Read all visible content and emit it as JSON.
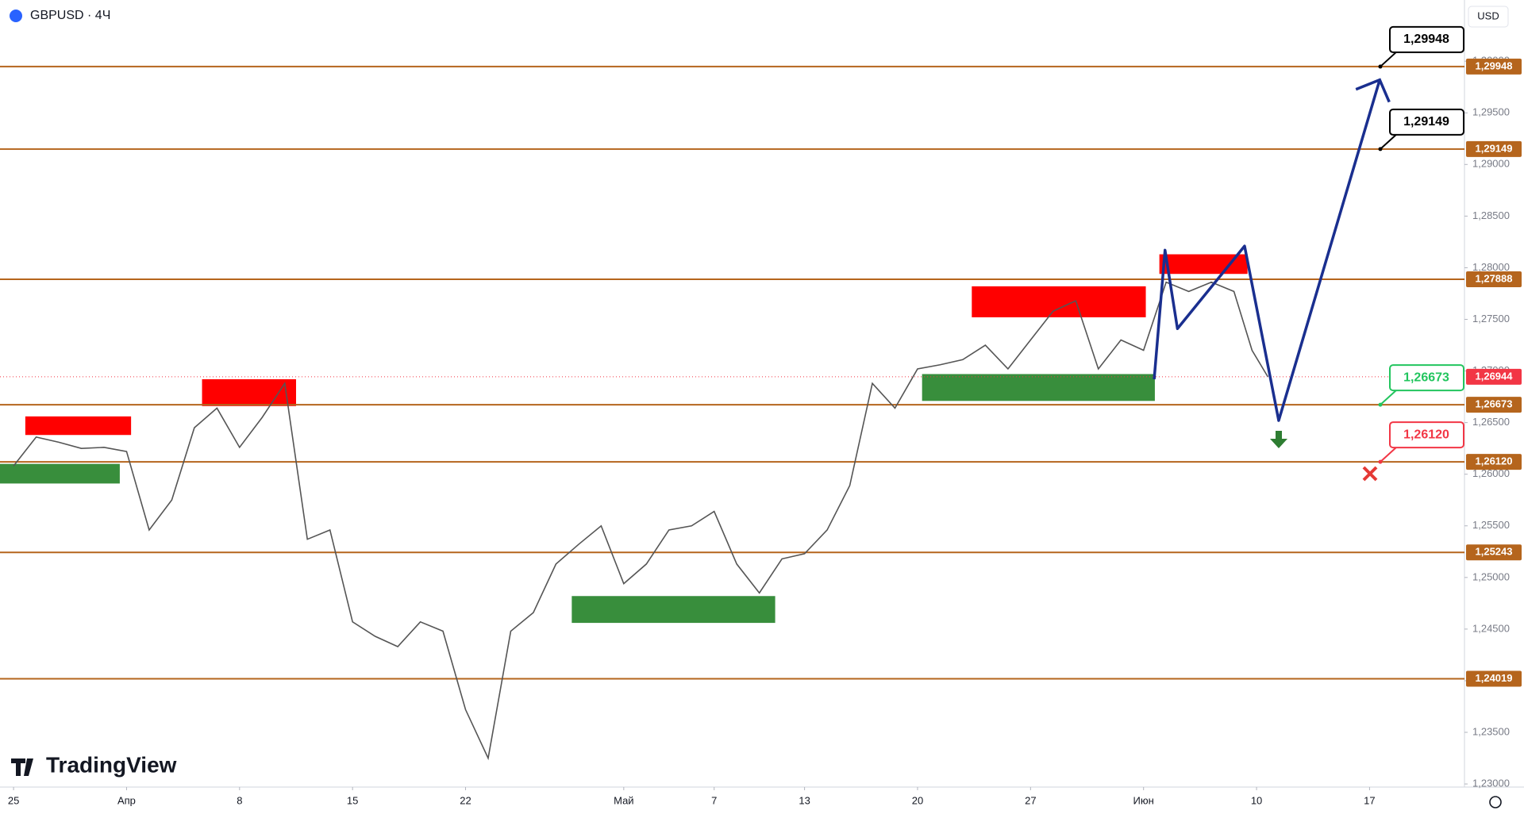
{
  "title": "GBPUSD · 4Ч",
  "currency": "USD",
  "brand": "TradingView",
  "chart_data": {
    "type": "line",
    "xlim": [
      -0.6,
      64.2
    ],
    "xticks": [
      {
        "value": 0,
        "label": "25"
      },
      {
        "value": 5,
        "label": "Апр"
      },
      {
        "value": 10,
        "label": "8"
      },
      {
        "value": 15,
        "label": "15"
      },
      {
        "value": 20,
        "label": "22"
      },
      {
        "value": 27,
        "label": "Май"
      },
      {
        "value": 31,
        "label": "7"
      },
      {
        "value": 35,
        "label": "13"
      },
      {
        "value": 40,
        "label": "20"
      },
      {
        "value": 45,
        "label": "27"
      },
      {
        "value": 50,
        "label": "Июн"
      },
      {
        "value": 55,
        "label": "10"
      },
      {
        "value": 60,
        "label": "17"
      }
    ],
    "ylim": [
      1.2297,
      1.30593
    ],
    "yticks": [
      {
        "value": 1.23,
        "label": "1,23000"
      },
      {
        "value": 1.235,
        "label": "1,23500"
      },
      {
        "value": 1.24,
        "label": "1,24000"
      },
      {
        "value": 1.245,
        "label": "1,24500"
      },
      {
        "value": 1.25,
        "label": "1,25000"
      },
      {
        "value": 1.255,
        "label": "1,25500"
      },
      {
        "value": 1.26,
        "label": "1,26000"
      },
      {
        "value": 1.265,
        "label": "1,26500"
      },
      {
        "value": 1.27,
        "label": "1,27000"
      },
      {
        "value": 1.275,
        "label": "1,27500"
      },
      {
        "value": 1.28,
        "label": "1,28000"
      },
      {
        "value": 1.285,
        "label": "1,28500"
      },
      {
        "value": 1.29,
        "label": "1,29000"
      },
      {
        "value": 1.295,
        "label": "1,29500"
      },
      {
        "value": 1.3,
        "label": "1,30000"
      }
    ],
    "series": [
      {
        "color": "#555555",
        "x": [
          0,
          1,
          2,
          3,
          4,
          5,
          6,
          7,
          8,
          9,
          10,
          11,
          12,
          13,
          14,
          15,
          16,
          17,
          18,
          19,
          20,
          21,
          22,
          23,
          24,
          25,
          26,
          27,
          28,
          29,
          30,
          31,
          32,
          33,
          34,
          35,
          36,
          37,
          38,
          39,
          40,
          41,
          42,
          43,
          44,
          45,
          46,
          47,
          48,
          49,
          50,
          51,
          52,
          53,
          54,
          54.8,
          55.5
        ],
        "values": [
          1.2608,
          1.2636,
          1.2631,
          1.2625,
          1.2626,
          1.2622,
          1.2546,
          1.2575,
          1.2645,
          1.2664,
          1.2626,
          1.2655,
          1.2688,
          1.2537,
          1.2546,
          1.2457,
          1.2443,
          1.2433,
          1.2457,
          1.2448,
          1.2372,
          1.2325,
          1.2448,
          1.2466,
          1.2513,
          1.2532,
          1.255,
          1.2494,
          1.2513,
          1.2546,
          1.255,
          1.2564,
          1.2513,
          1.2485,
          1.2518,
          1.2523,
          1.2546,
          1.2589,
          1.2688,
          1.2664,
          1.2702,
          1.2706,
          1.2711,
          1.2725,
          1.2702,
          1.273,
          1.2758,
          1.2768,
          1.2702,
          1.273,
          1.272,
          1.2786,
          1.2777,
          1.2786,
          1.2777,
          1.272,
          1.26944
        ]
      }
    ],
    "levels": [
      {
        "value": 1.29948,
        "label": "1,29948"
      },
      {
        "value": 1.29149,
        "label": "1,29149"
      },
      {
        "value": 1.27888,
        "label": "1,27888"
      },
      {
        "value": 1.26673,
        "label": "1,26673"
      },
      {
        "value": 1.2612,
        "label": "1,26120"
      },
      {
        "value": 1.25243,
        "label": "1,25243"
      },
      {
        "value": 1.24019,
        "label": "1,24019"
      }
    ],
    "level_color": "#b5651d",
    "last_price": {
      "value": 1.26944,
      "label": "1,26944"
    },
    "last_color": "#f23645",
    "targets": [
      {
        "value": 1.29948,
        "label": "1,29948",
        "color": "#000000"
      },
      {
        "value": 1.29149,
        "label": "1,29149",
        "color": "#000000"
      },
      {
        "value": 1.26673,
        "label": "1,26673",
        "color": "#22c55e"
      },
      {
        "value": 1.2612,
        "label": "1,26120",
        "color": "#f23645"
      }
    ],
    "zones": [
      {
        "x": [
          0.52,
          5.2
        ],
        "y": [
          1.2638,
          1.2656
        ],
        "color": "#ff0000"
      },
      {
        "x": [
          8.34,
          12.5
        ],
        "y": [
          1.2666,
          1.2692
        ],
        "color": "#ff0000"
      },
      {
        "x": [
          42.4,
          50.1
        ],
        "y": [
          1.2752,
          1.2782
        ],
        "color": "#ff0000"
      },
      {
        "x": [
          50.7,
          54.6
        ],
        "y": [
          1.2794,
          1.2813
        ],
        "color": "#ff0000"
      },
      {
        "x": [
          -0.6,
          4.7
        ],
        "y": [
          1.2591,
          1.261
        ],
        "color": "#388e3c"
      },
      {
        "x": [
          24.7,
          33.7
        ],
        "y": [
          1.2456,
          1.2482
        ],
        "color": "#388e3c"
      },
      {
        "x": [
          40.2,
          50.5
        ],
        "y": [
          1.2671,
          1.2697
        ],
        "color": "#388e3c"
      }
    ],
    "projection": {
      "color": "#1a2f8f",
      "x": [
        50.47,
        50.95,
        51.5,
        54.47,
        55.98,
        60.45
      ],
      "values": [
        1.2692,
        1.2817,
        1.2741,
        1.2821,
        1.2652,
        1.2982
      ]
    }
  }
}
